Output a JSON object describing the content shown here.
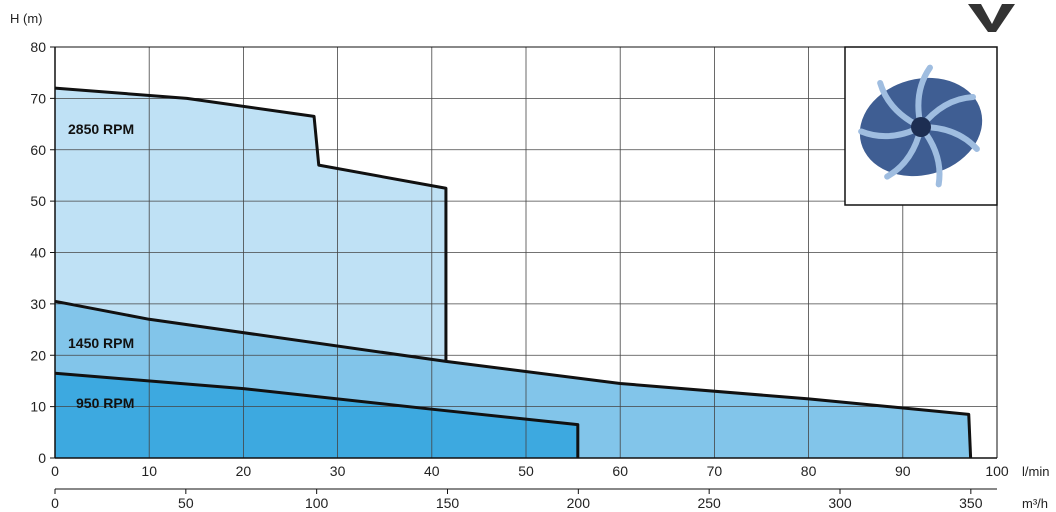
{
  "chart_data": {
    "type": "area",
    "title": "",
    "ylabel": "H (m)",
    "xlabel_primary": "l/min",
    "xlabel_secondary": "m³/h",
    "xlim": [
      0,
      100
    ],
    "ylim": [
      0,
      80
    ],
    "x_ticks": [
      "0",
      "10",
      "20",
      "30",
      "40",
      "50",
      "60",
      "70",
      "80",
      "90",
      "100"
    ],
    "y_ticks": [
      "0",
      "10",
      "20",
      "30",
      "40",
      "50",
      "60",
      "70",
      "80"
    ],
    "secondary_x_ticks": [
      "0",
      "50",
      "100",
      "150",
      "200",
      "250",
      "300",
      "350"
    ],
    "secondary_x_values": [
      0,
      50,
      100,
      150,
      200,
      250,
      300,
      350
    ],
    "secondary_x_max": 360,
    "grid": true,
    "colors": {
      "2850 RPM": "#bfe1f5",
      "1450 RPM": "#82c5ea",
      "950 RPM": "#3da9e0",
      "outline": "#111111",
      "grid": "#444444"
    },
    "series": [
      {
        "name": "2850 RPM",
        "x": [
          0,
          14,
          27.5,
          28,
          41.5,
          41.5
        ],
        "y": [
          72,
          70,
          66.5,
          57,
          52.5,
          19
        ]
      },
      {
        "name": "1450 RPM",
        "x": [
          0,
          10,
          41.5,
          60,
          80,
          97,
          97.2
        ],
        "y": [
          30.5,
          27,
          18.8,
          14.5,
          11.5,
          8.5,
          0
        ]
      },
      {
        "name": "950 RPM",
        "x": [
          0,
          20,
          40,
          55.5,
          55.5
        ],
        "y": [
          16.5,
          13.5,
          9.5,
          6.5,
          0
        ]
      }
    ],
    "series_labels": [
      "2850 RPM",
      "1450 RPM",
      "950 RPM"
    ],
    "inset_image": "impeller-photo"
  }
}
